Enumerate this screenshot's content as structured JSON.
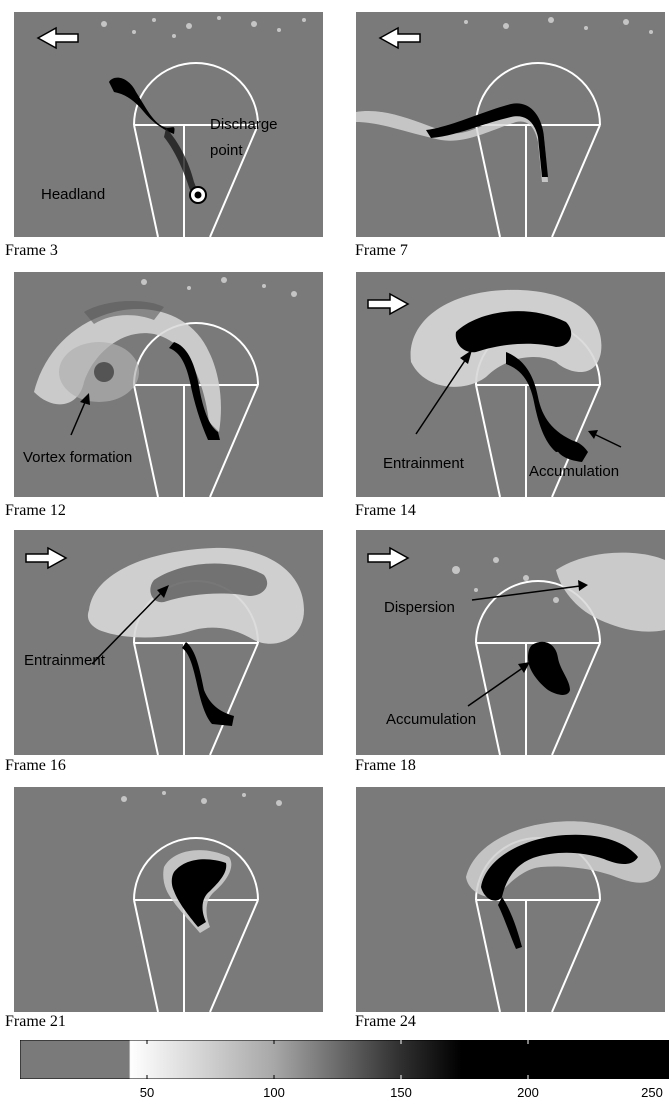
{
  "panels": [
    {
      "caption": "Frame 3"
    },
    {
      "caption": "Frame 7"
    },
    {
      "caption": "Frame 12"
    },
    {
      "caption": "Frame 14"
    },
    {
      "caption": "Frame 16"
    },
    {
      "caption": "Frame 18"
    },
    {
      "caption": "Frame 21"
    },
    {
      "caption": "Frame 24"
    }
  ],
  "annotations": {
    "discharge_point_1": "Discharge",
    "discharge_point_2": "point",
    "headland": "Headland",
    "vortex_formation": "Vortex formation",
    "entrainment_14": "Entrainment",
    "accumulation_14": "Accumulation",
    "entrainment_16": "Entrainment",
    "dispersion_18": "Dispersion",
    "accumulation_18": "Accumulation"
  },
  "colorbar": {
    "ticks": [
      "50",
      "100",
      "150",
      "200",
      "250"
    ],
    "colors": {
      "background": "#7a7a7a",
      "light": "#ffffff",
      "dark": "#000000"
    }
  },
  "flow_arrows": {
    "frame_3": "left",
    "frame_7": "left",
    "frame_14": "right",
    "frame_16": "right",
    "frame_18": "right"
  }
}
